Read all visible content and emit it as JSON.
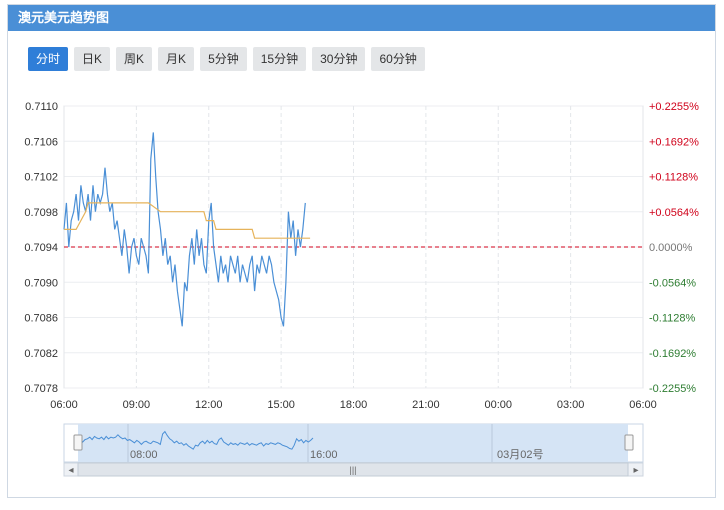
{
  "header": {
    "title": "澳元美元趋势图"
  },
  "tabs": [
    {
      "label": "分时",
      "active": true
    },
    {
      "label": "日K",
      "active": false
    },
    {
      "label": "周K",
      "active": false
    },
    {
      "label": "月K",
      "active": false
    },
    {
      "label": "5分钟",
      "active": false
    },
    {
      "label": "15分钟",
      "active": false
    },
    {
      "label": "30分钟",
      "active": false
    },
    {
      "label": "60分钟",
      "active": false
    }
  ],
  "colors": {
    "header": "#4a8fd6",
    "price_line": "#4a8fd6",
    "avg_line": "#e6b35a",
    "positive": "#d0021b",
    "negative": "#2e7d32",
    "baseline": "#d0021b"
  },
  "chart_data": {
    "type": "line",
    "title": "",
    "xlabel": "",
    "ylabel": "",
    "x_ticks": [
      "06:00",
      "09:00",
      "12:00",
      "15:00",
      "18:00",
      "21:00",
      "00:00",
      "03:00",
      "06:00"
    ],
    "y_ticks": [
      "0.7110",
      "0.7106",
      "0.7102",
      "0.7098",
      "0.7094",
      "0.7090",
      "0.7086",
      "0.7082",
      "0.7078"
    ],
    "pct_ticks": [
      "+0.2255%",
      "+0.1692%",
      "+0.1128%",
      "+0.0564%",
      "0.0000%",
      "-0.0564%",
      "-0.1128%",
      "-0.1692%",
      "-0.2255%"
    ],
    "ylim": [
      0.7078,
      0.711
    ],
    "xlim_hours": [
      0,
      24
    ],
    "baseline": 0.7094,
    "grid": true,
    "series": [
      {
        "style": "price",
        "x": [
          0.0,
          0.1,
          0.2,
          0.3,
          0.4,
          0.5,
          0.6,
          0.7,
          0.8,
          0.9,
          1.0,
          1.1,
          1.2,
          1.3,
          1.4,
          1.5,
          1.6,
          1.7,
          1.8,
          1.9,
          2.0,
          2.1,
          2.2,
          2.3,
          2.4,
          2.5,
          2.6,
          2.7,
          2.8,
          2.9,
          3.0,
          3.1,
          3.2,
          3.3,
          3.4,
          3.5,
          3.6,
          3.7,
          3.8,
          3.9,
          4.0,
          4.1,
          4.2,
          4.3,
          4.4,
          4.5,
          4.6,
          4.7,
          4.8,
          4.9,
          5.0,
          5.1,
          5.2,
          5.3,
          5.4,
          5.5,
          5.6,
          5.7,
          5.8,
          5.9,
          6.0,
          6.1,
          6.2,
          6.3,
          6.4,
          6.5,
          6.6,
          6.7,
          6.8,
          6.9,
          7.0,
          7.1,
          7.2,
          7.3,
          7.4,
          7.5,
          7.6,
          7.7,
          7.8,
          7.9,
          8.0,
          8.1,
          8.2,
          8.3,
          8.4,
          8.5,
          8.6,
          8.7,
          8.8,
          8.9,
          9.0,
          9.1,
          9.2,
          9.3,
          9.4,
          9.5,
          9.6,
          9.7,
          9.8,
          9.9,
          10.0
        ],
        "y": [
          0.7096,
          0.7099,
          0.7094,
          0.7097,
          0.7098,
          0.71,
          0.7097,
          0.7101,
          0.7099,
          0.7098,
          0.71,
          0.7097,
          0.7101,
          0.7098,
          0.71,
          0.7099,
          0.71,
          0.7103,
          0.71,
          0.7098,
          0.7099,
          0.7096,
          0.7097,
          0.7095,
          0.7093,
          0.7096,
          0.7094,
          0.7091,
          0.7094,
          0.7095,
          0.7093,
          0.7092,
          0.7095,
          0.7094,
          0.7093,
          0.7091,
          0.7104,
          0.7107,
          0.7102,
          0.7098,
          0.7096,
          0.7093,
          0.7095,
          0.7092,
          0.7093,
          0.709,
          0.7092,
          0.7089,
          0.7087,
          0.7085,
          0.709,
          0.7089,
          0.7093,
          0.7095,
          0.7092,
          0.7096,
          0.7093,
          0.7095,
          0.7092,
          0.7091,
          0.7097,
          0.7099,
          0.7094,
          0.7092,
          0.709,
          0.7093,
          0.7091,
          0.7092,
          0.709,
          0.7093,
          0.7092,
          0.7091,
          0.7093,
          0.709,
          0.7092,
          0.7091,
          0.709,
          0.7092,
          0.7093,
          0.7089,
          0.7092,
          0.7091,
          0.7093,
          0.7092,
          0.7091,
          0.7093,
          0.7092,
          0.709,
          0.7089,
          0.7088,
          0.7086,
          0.7085,
          0.709,
          0.7098,
          0.7095,
          0.7097,
          0.7093,
          0.7096,
          0.7094,
          0.7096,
          0.7099
        ]
      },
      {
        "style": "average",
        "x": [
          0.0,
          0.5,
          0.9,
          1.0,
          3.5,
          4.0,
          4.1,
          5.8,
          5.9,
          6.2,
          6.3,
          7.8,
          7.9,
          10.2
        ],
        "y": [
          0.7096,
          0.7096,
          0.7098,
          0.7099,
          0.7099,
          0.7098,
          0.7098,
          0.7098,
          0.7097,
          0.7097,
          0.7096,
          0.7096,
          0.7095,
          0.7095
        ]
      }
    ]
  },
  "navigator": {
    "labels": [
      "08:00",
      "16:00",
      "03月02号"
    ],
    "left_arrow": "◂",
    "right_arrow": "▸",
    "handle": "|||"
  }
}
